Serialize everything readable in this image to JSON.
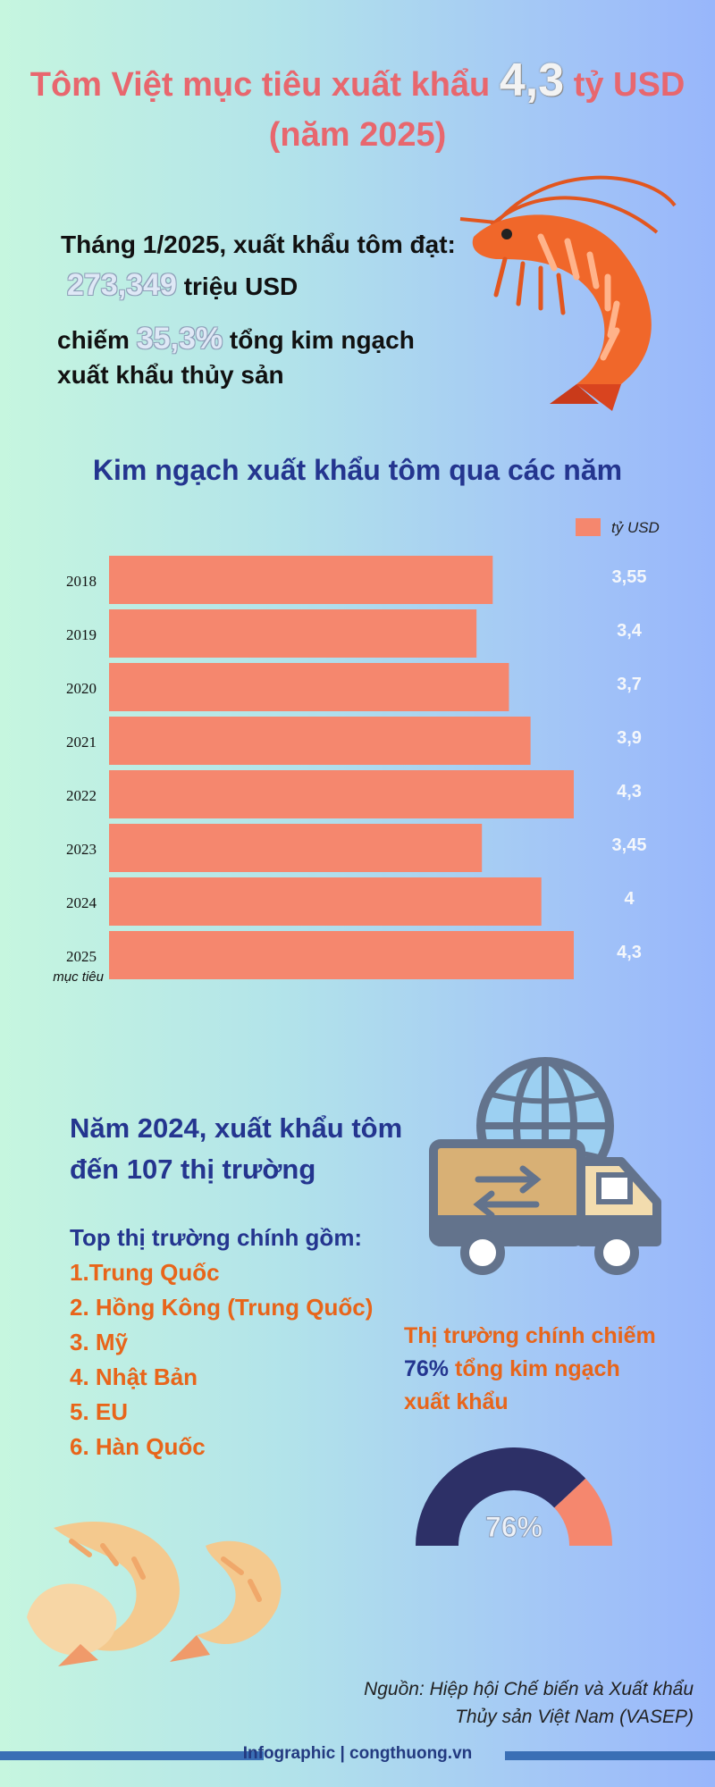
{
  "title": {
    "line1_before": "Tôm Việt mục tiêu xuất khẩu",
    "line1_number": "4,3",
    "line1_after": "tỷ USD",
    "line2": "(năm 2025)"
  },
  "intro": {
    "line1": "Tháng 1/2025, xuất khẩu tôm đạt:",
    "value": "273,349",
    "value_unit": "triệu USD",
    "share_prefix": "chiếm",
    "share_value": "35,3%",
    "share_suffix": "tổng kim ngạch",
    "line4": "xuất khẩu thủy sản"
  },
  "chart_data": {
    "type": "bar",
    "orientation": "horizontal",
    "title": "Kim ngạch xuất khẩu tôm qua các năm",
    "legend": "tỷ USD",
    "legend_position": "top-right",
    "bar_color": "#f5876e",
    "categories": [
      "2018",
      "2019",
      "2020",
      "2021",
      "2022",
      "2023",
      "2024",
      "2025"
    ],
    "category_sublabels": [
      "",
      "",
      "",
      "",
      "",
      "",
      "",
      "mục tiêu"
    ],
    "values": [
      3.55,
      3.4,
      3.7,
      3.9,
      4.3,
      3.45,
      4,
      4.3
    ],
    "value_labels": [
      "3,55",
      "3,4",
      "3,7",
      "3,9",
      "4,3",
      "3,45",
      "4",
      "4,3"
    ],
    "xlim": [
      0,
      4.3
    ]
  },
  "markets": {
    "heading_line1": "Năm 2024, xuất khẩu tôm",
    "heading_line2": "đến 107 thị trường",
    "subheading": "Top thị trường chính gồm:",
    "items": [
      "1.Trung Quốc",
      "2. Hồng Kông (Trung Quốc)",
      "3. Mỹ",
      "4. Nhật Bản",
      "5. EU",
      "6. Hàn Quốc"
    ]
  },
  "share": {
    "line1": "Thị trường chính chiếm",
    "pct": "76%",
    "line2_suffix": "tổng kim ngạch",
    "line3": "xuất khẩu",
    "gauge_label": "76%",
    "gauge_value": 76,
    "gauge_color_main": "#2d3067",
    "gauge_color_rest": "#f5876e"
  },
  "source": {
    "line1": "Nguồn: Hiệp hội Chế biến và Xuất khẩu",
    "line2": "Thủy sản Việt Nam (VASEP)"
  },
  "footer": {
    "text": "Infographic | congthuong.vn"
  },
  "icons": {
    "hero": "shrimp-icon",
    "truck": "delivery-truck-icon",
    "globe": "globe-icon",
    "cooked": "cooked-shrimp-icon"
  }
}
